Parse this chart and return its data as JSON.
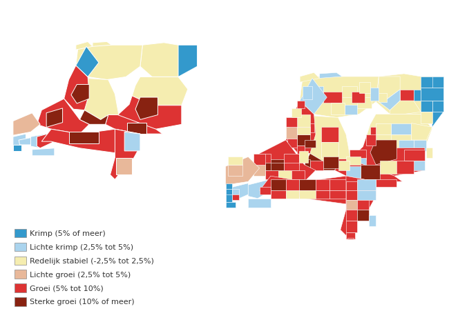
{
  "legend_items": [
    {
      "label": "Krimp (5% of meer)",
      "color": "#3399CC"
    },
    {
      "label": "Lichte krimp (2,5% tot 5%)",
      "color": "#AAD4EE"
    },
    {
      "label": "Redelijk stabiel (-2,5% tot 2,5%)",
      "color": "#F5EDB0"
    },
    {
      "label": "Lichte groei (2,5% tot 5%)",
      "color": "#E8B89A"
    },
    {
      "label": "Groei (5% tot 10%)",
      "color": "#DD3333"
    },
    {
      "label": "Sterke groei (10% of meer)",
      "color": "#882211"
    }
  ],
  "background_color": "#FFFFFF",
  "nl_lon_min": 3.36,
  "nl_lon_max": 7.23,
  "nl_lat_min": 50.74,
  "nl_lat_max": 53.56
}
